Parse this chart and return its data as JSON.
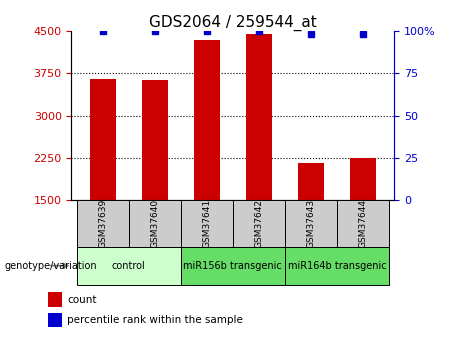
{
  "title": "GDS2064 / 259544_at",
  "samples": [
    "GSM37639",
    "GSM37640",
    "GSM37641",
    "GSM37642",
    "GSM37643",
    "GSM37644"
  ],
  "count_values": [
    3650,
    3640,
    4350,
    4450,
    2150,
    2250
  ],
  "percentile_values": [
    100,
    100,
    100,
    100,
    98,
    98
  ],
  "groups": [
    {
      "label": "control",
      "start": 0,
      "end": 2,
      "color": "#ccffcc"
    },
    {
      "label": "miR156b transgenic",
      "start": 2,
      "end": 4,
      "color": "#66dd66"
    },
    {
      "label": "miR164b transgenic",
      "start": 4,
      "end": 6,
      "color": "#66dd66"
    }
  ],
  "ylim_left": [
    1500,
    4500
  ],
  "ylim_right": [
    0,
    100
  ],
  "yticks_left": [
    1500,
    2250,
    3000,
    3750,
    4500
  ],
  "yticks_right": [
    0,
    25,
    50,
    75,
    100
  ],
  "bar_color": "#cc0000",
  "dot_color": "#0000cc",
  "left_axis_color": "#cc0000",
  "right_axis_color": "#0000cc",
  "grid_color": "#000000",
  "background_color": "#ffffff",
  "title_fontsize": 11,
  "tick_fontsize": 8,
  "sample_box_color": "#cccccc"
}
